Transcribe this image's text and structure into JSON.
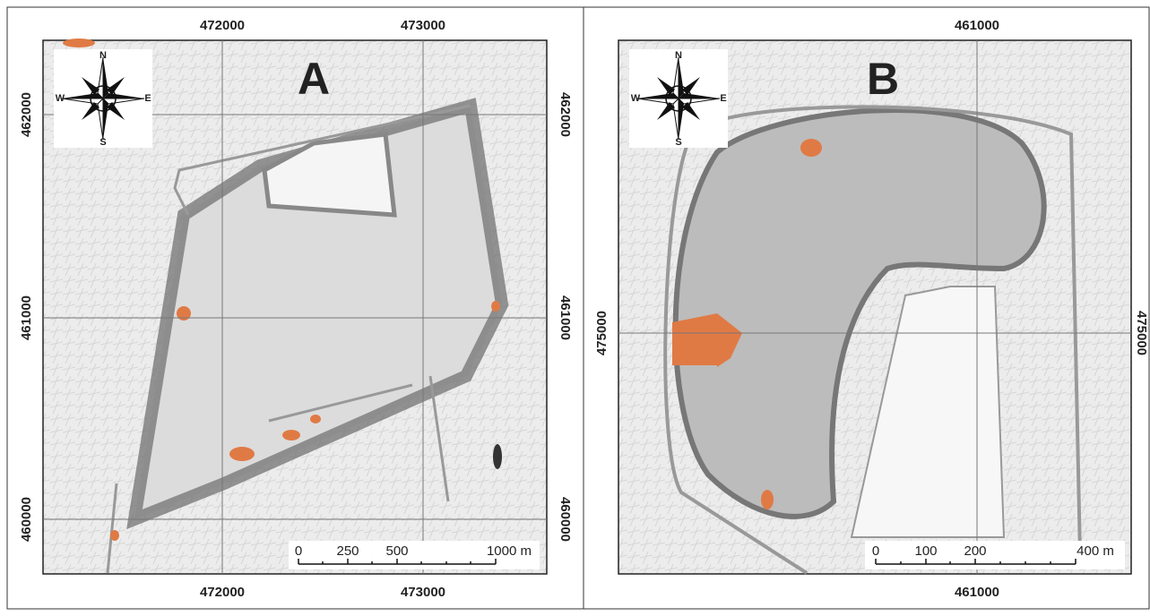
{
  "panels": [
    {
      "label": "A",
      "compass": {
        "n": "N",
        "s": "S",
        "w": "W",
        "e": "E"
      },
      "top_ticks": [
        "472000",
        "473000"
      ],
      "bottom_ticks": [
        "472000",
        "473000"
      ],
      "left_ticks": [
        "462000",
        "461000",
        "460000"
      ],
      "right_ticks": [
        "462000",
        "461000",
        "460000"
      ],
      "scale_labels": [
        "0",
        "250",
        "500",
        "1000 m"
      ]
    },
    {
      "label": "B",
      "compass": {
        "n": "N",
        "s": "S",
        "w": "W",
        "e": "E"
      },
      "top_ticks": [
        "461000"
      ],
      "bottom_ticks": [
        "461000"
      ],
      "left_ticks": [
        "475000"
      ],
      "right_ticks": [
        "475000"
      ],
      "scale_labels": [
        "0",
        "100",
        "200",
        "400 m"
      ]
    }
  ]
}
